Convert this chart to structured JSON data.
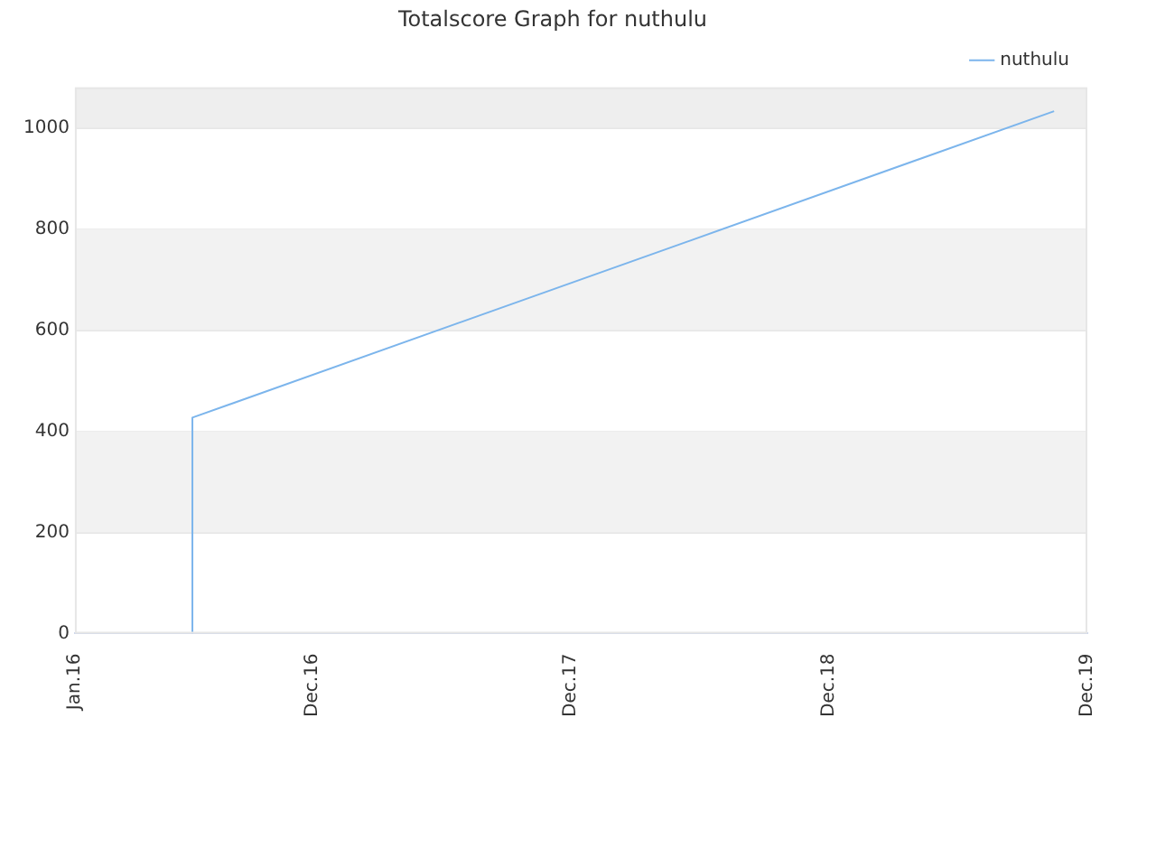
{
  "chart_data": {
    "type": "line",
    "title": "Totalscore Graph for nuthulu",
    "x": [
      "2016-06-15",
      "2016-06-15",
      "2019-10-15"
    ],
    "series": [
      {
        "name": "nuthulu",
        "color": "#7cb5ec",
        "values": [
          0,
          427,
          1033
        ]
      }
    ],
    "xlim": [
      "2016-01-01",
      "2019-12-01"
    ],
    "xticks": [
      {
        "value": "2016-01-01",
        "label": "Jan.16"
      },
      {
        "value": "2016-12-01",
        "label": "Dec.16"
      },
      {
        "value": "2017-12-01",
        "label": "Dec.17"
      },
      {
        "value": "2018-12-01",
        "label": "Dec.18"
      },
      {
        "value": "2019-12-01",
        "label": "Dec.19"
      }
    ],
    "ylim": [
      0,
      1080
    ],
    "yticks": [
      0,
      200,
      400,
      600,
      800,
      1000
    ],
    "bands": [
      {
        "axis": "y",
        "from": 200,
        "to": 400,
        "color": "#f2f2f2"
      },
      {
        "axis": "y",
        "from": 600,
        "to": 800,
        "color": "#f2f2f2"
      },
      {
        "axis": "y",
        "from": 1000,
        "to": 1080,
        "color": "#eeeeee"
      }
    ],
    "grid": "y",
    "legend": "top right",
    "marker": "none",
    "line_style": "solid"
  }
}
